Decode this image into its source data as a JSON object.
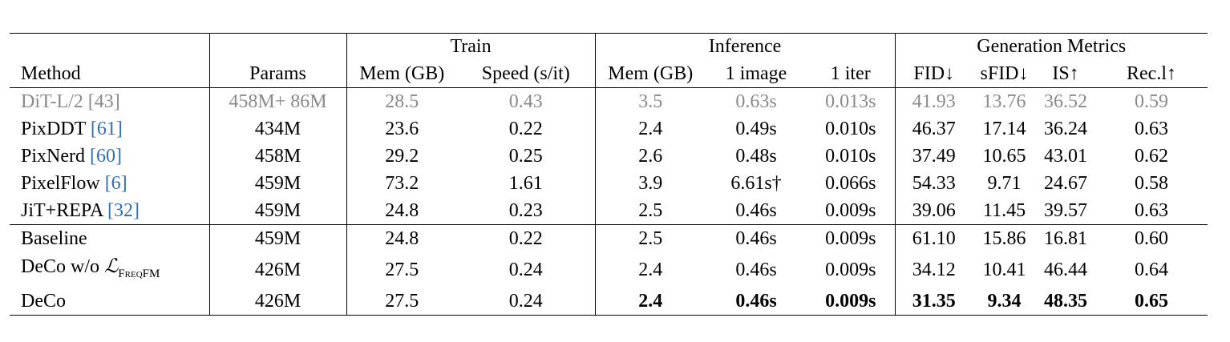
{
  "table": {
    "groups": {
      "train": "Train",
      "inference": "Inference",
      "generation": "Generation Metrics"
    },
    "headers": {
      "method": "Method",
      "params": "Params",
      "train_mem": "Mem (GB)",
      "train_speed": "Speed (s/it)",
      "inf_mem": "Mem (GB)",
      "inf_image": "1 image",
      "inf_iter": "1 iter",
      "fid": "FID↓",
      "sfid": "sFID↓",
      "is": "IS↑",
      "rec": "Rec.l↑"
    },
    "rows": [
      {
        "method": "DiT-L/2 ",
        "cite": "[43]",
        "params": "458M+ 86M",
        "train_mem": "28.5",
        "train_speed": "0.43",
        "inf_mem": "3.5",
        "inf_image": "0.63s",
        "inf_iter": "0.013s",
        "fid": "41.93",
        "sfid": "13.76",
        "is": "36.52",
        "rec": "0.59"
      },
      {
        "method": "PixDDT ",
        "cite": "[61]",
        "params": "434M",
        "train_mem": "23.6",
        "train_speed": "0.22",
        "inf_mem": "2.4",
        "inf_image": "0.49s",
        "inf_iter": "0.010s",
        "fid": "46.37",
        "sfid": "17.14",
        "is": "36.24",
        "rec": "0.63"
      },
      {
        "method": "PixNerd ",
        "cite": "[60]",
        "params": "458M",
        "train_mem": "29.2",
        "train_speed": "0.25",
        "inf_mem": "2.6",
        "inf_image": "0.48s",
        "inf_iter": "0.010s",
        "fid": "37.49",
        "sfid": "10.65",
        "is": "43.01",
        "rec": "0.62"
      },
      {
        "method": "PixelFlow ",
        "cite": "[6]",
        "params": "459M",
        "train_mem": "73.2",
        "train_speed": "1.61",
        "inf_mem": "3.9",
        "inf_image": "6.61s†",
        "inf_iter": "0.066s",
        "fid": "54.33",
        "sfid": "9.71",
        "is": "24.67",
        "rec": "0.58"
      },
      {
        "method": "JiT+REPA ",
        "cite": "[32]",
        "params": "459M",
        "train_mem": "24.8",
        "train_speed": "0.23",
        "inf_mem": "2.5",
        "inf_image": "0.46s",
        "inf_iter": "0.009s",
        "fid": "39.06",
        "sfid": "11.45",
        "is": "39.57",
        "rec": "0.63"
      },
      {
        "method": "Baseline",
        "params": "459M",
        "train_mem": "24.8",
        "train_speed": "0.22",
        "inf_mem": "2.5",
        "inf_image": "0.46s",
        "inf_iter": "0.009s",
        "fid": "61.10",
        "sfid": "15.86",
        "is": "16.81",
        "rec": "0.60"
      },
      {
        "method": "DeCo w/o ",
        "math": "ℒ",
        "math_sub": "FreqFM",
        "params": "426M",
        "train_mem": "27.5",
        "train_speed": "0.24",
        "inf_mem": "2.4",
        "inf_image": "0.46s",
        "inf_iter": "0.009s",
        "fid": "34.12",
        "sfid": "10.41",
        "is": "46.44",
        "rec": "0.64"
      },
      {
        "method": "DeCo",
        "params": "426M",
        "train_mem": "27.5",
        "train_speed": "0.24",
        "inf_mem": "2.4",
        "inf_image": "0.46s",
        "inf_iter": "0.009s",
        "fid": "31.35",
        "sfid": "9.34",
        "is": "48.35",
        "rec": "0.65"
      }
    ]
  }
}
